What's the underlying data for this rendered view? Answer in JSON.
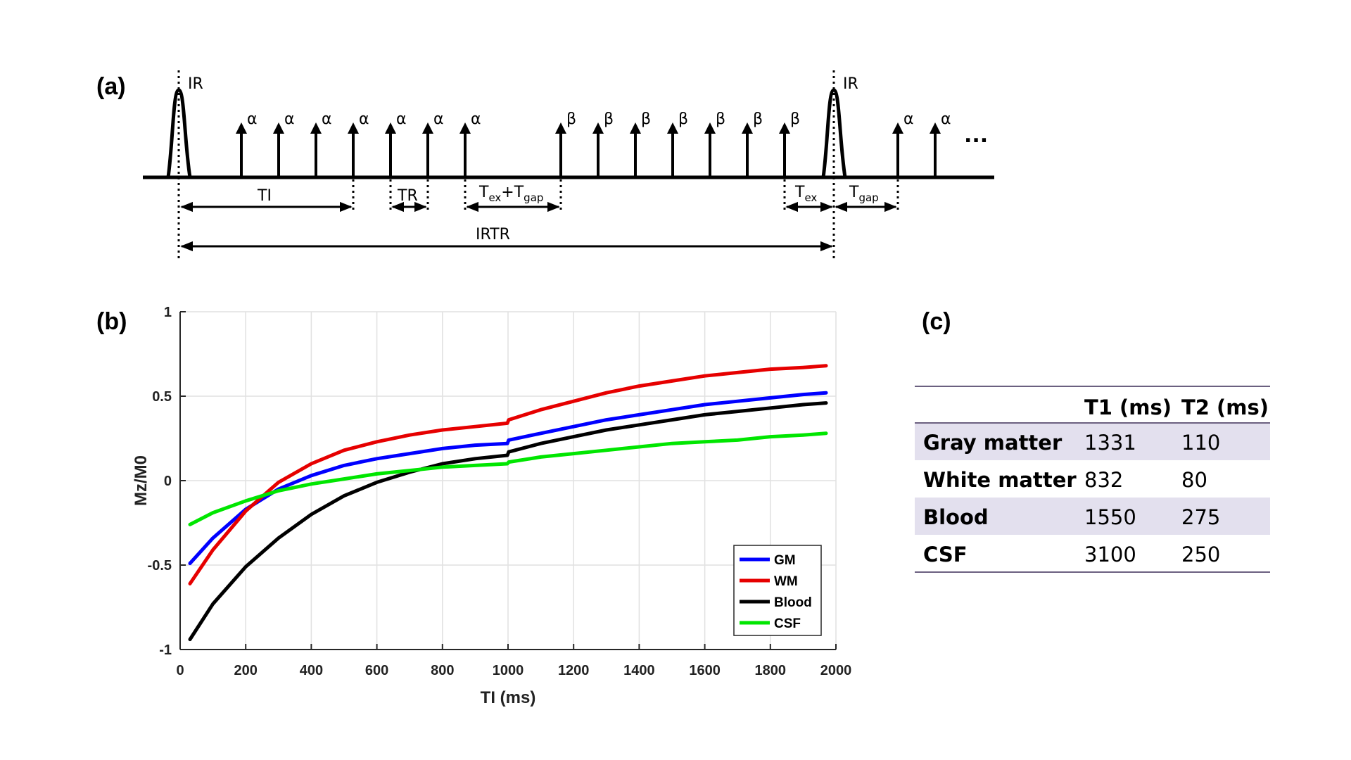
{
  "panel_a": {
    "label": "(a)",
    "ir_label": "IR",
    "alpha": "α",
    "beta": "β",
    "ellipsis": "...",
    "ti": "TI",
    "tr": "TR",
    "tex_main": "T",
    "tex_sub": "ex",
    "plus_tgap_main": "+T",
    "tgap_sub": "gap",
    "tgap_main": "T",
    "irtr": "IRTR"
  },
  "panel_b": {
    "label": "(b)"
  },
  "panel_c": {
    "label": "(c)",
    "headers": [
      "",
      "T1 (ms)",
      "T2 (ms)"
    ],
    "rows": [
      {
        "tissue": "Gray matter",
        "t1": "1331",
        "t2": "110"
      },
      {
        "tissue": "White matter",
        "t1": "832",
        "t2": "80"
      },
      {
        "tissue": "Blood",
        "t1": "1550",
        "t2": "275"
      },
      {
        "tissue": "CSF",
        "t1": "3100",
        "t2": "250"
      }
    ],
    "stripe_color": "#e3e0ee",
    "rule_color": "#6b6080"
  },
  "chart_data": {
    "type": "line",
    "title": "",
    "xlabel": "TI (ms)",
    "ylabel": "Mz/M0",
    "xlim": [
      0,
      2000
    ],
    "ylim": [
      -1,
      1
    ],
    "xticks": [
      0,
      200,
      400,
      600,
      800,
      1000,
      1200,
      1400,
      1600,
      1800,
      2000
    ],
    "yticks": [
      -1,
      -0.5,
      0,
      0.5,
      1
    ],
    "ytick_labels": [
      "-1",
      "-0.5",
      "0",
      "0.5",
      "1"
    ],
    "grid": true,
    "legend_position": "bottom-right",
    "x": [
      30,
      100,
      200,
      300,
      400,
      500,
      600,
      700,
      800,
      900,
      998,
      1002,
      1100,
      1200,
      1300,
      1400,
      1500,
      1600,
      1700,
      1800,
      1900,
      1970
    ],
    "series": [
      {
        "name": "GM",
        "color": "#0000ff",
        "values": [
          -0.49,
          -0.34,
          -0.17,
          -0.05,
          0.03,
          0.09,
          0.13,
          0.16,
          0.19,
          0.21,
          0.22,
          0.24,
          0.28,
          0.32,
          0.36,
          0.39,
          0.42,
          0.45,
          0.47,
          0.49,
          0.51,
          0.52
        ]
      },
      {
        "name": "WM",
        "color": "#e60000",
        "values": [
          -0.61,
          -0.41,
          -0.18,
          -0.01,
          0.1,
          0.18,
          0.23,
          0.27,
          0.3,
          0.32,
          0.34,
          0.36,
          0.42,
          0.47,
          0.52,
          0.56,
          0.59,
          0.62,
          0.64,
          0.66,
          0.67,
          0.68
        ]
      },
      {
        "name": "Blood",
        "color": "#000000",
        "values": [
          -0.94,
          -0.73,
          -0.51,
          -0.34,
          -0.2,
          -0.09,
          -0.01,
          0.05,
          0.1,
          0.13,
          0.15,
          0.17,
          0.22,
          0.26,
          0.3,
          0.33,
          0.36,
          0.39,
          0.41,
          0.43,
          0.45,
          0.46
        ]
      },
      {
        "name": "CSF",
        "color": "#00e600",
        "values": [
          -0.26,
          -0.19,
          -0.12,
          -0.06,
          -0.02,
          0.01,
          0.04,
          0.06,
          0.08,
          0.09,
          0.1,
          0.11,
          0.14,
          0.16,
          0.18,
          0.2,
          0.22,
          0.23,
          0.24,
          0.26,
          0.27,
          0.28
        ]
      }
    ]
  }
}
